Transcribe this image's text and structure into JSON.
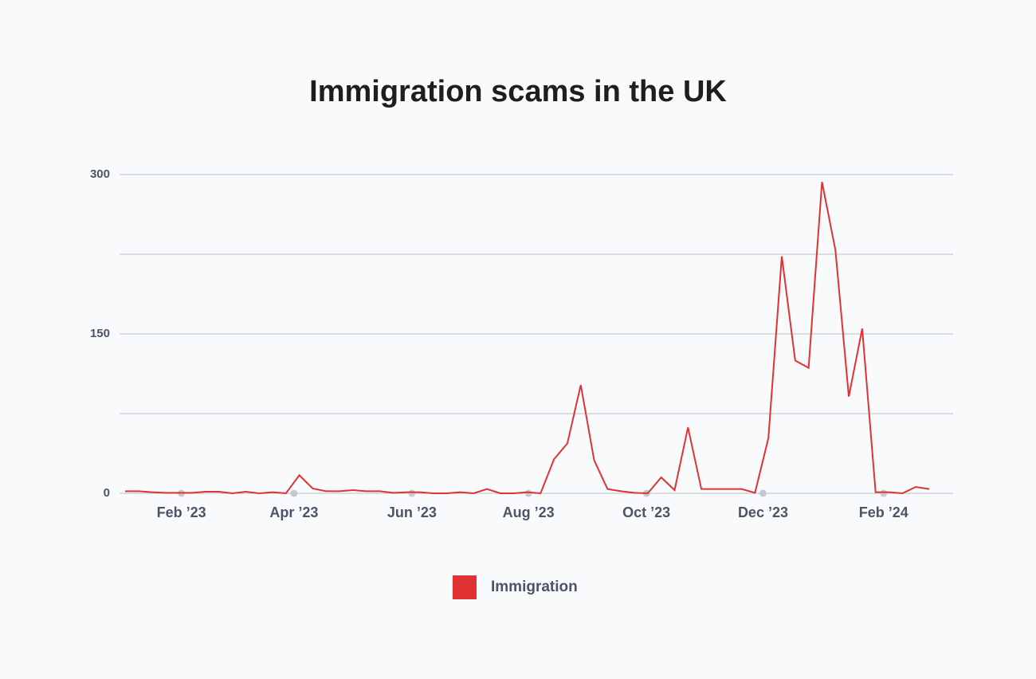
{
  "chart_data": {
    "type": "line",
    "title": "Immigration scams in the UK",
    "series": [
      {
        "name": "Immigration",
        "color": "#e03232",
        "values": [
          2,
          2,
          1,
          0.5,
          0.5,
          0.5,
          1.5,
          1.5,
          0,
          1.5,
          0,
          1,
          0,
          17,
          4.5,
          2,
          2,
          3,
          2,
          2,
          0.5,
          1,
          1,
          0,
          0,
          1,
          0,
          4,
          0,
          0,
          1,
          0,
          32,
          47,
          102,
          31,
          4,
          2,
          0.5,
          0,
          15,
          3,
          62,
          4,
          4,
          4,
          4,
          0.5,
          52,
          223,
          125,
          118,
          293,
          229,
          91,
          155,
          1,
          1,
          0,
          6,
          4
        ]
      }
    ],
    "xlim": [
      0,
      60
    ],
    "xticks": [
      {
        "value": 4.2,
        "label": "Feb ’23"
      },
      {
        "value": 12.6,
        "label": "Apr ’23"
      },
      {
        "value": 21.4,
        "label": "Jun ’23"
      },
      {
        "value": 30.1,
        "label": "Aug ’23"
      },
      {
        "value": 38.9,
        "label": "Oct ’23"
      },
      {
        "value": 47.6,
        "label": "Dec ’23"
      },
      {
        "value": 56.6,
        "label": "Feb ’24"
      }
    ],
    "ylim": [
      0,
      300
    ],
    "yticks": [
      0,
      150,
      300
    ],
    "ygrid": [
      0,
      75,
      150,
      225,
      300
    ],
    "grid": true,
    "legend": "bottom"
  }
}
